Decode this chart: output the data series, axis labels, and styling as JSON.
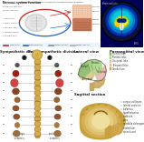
{
  "fig_bg": "#ffffff",
  "panels": {
    "top_left": {
      "bg_color": "#cce8f4",
      "brain_gray": "#d8d8d8",
      "brain_dark": "#b0b0b0",
      "red_curve": "#cc2222",
      "blue_curve": "#2266cc",
      "skin_box": "#f5c8a8",
      "muscle_box": "#c8785a",
      "text_dark": "#222222",
      "label_color": "#444444"
    },
    "top_right": {
      "bg_color": "#000080",
      "outer_color": "#004488",
      "cyan_color": "#00ccdd",
      "yellow_color": "#eedd00",
      "white_color": "#cceeee"
    },
    "bottom_left": {
      "bg_color": "#ffffff",
      "spine_tan": "#c8a040",
      "spine_dark": "#a07820",
      "brain_tan": "#c8a040",
      "organ_eye": "#555555",
      "organ_heart": "#881111",
      "organ_lung": "#cc4444",
      "organ_liver": "#7a4020",
      "organ_stomach": "#8a6030",
      "organ_kidney": "#885030",
      "organ_bladder": "#998855",
      "organ_intestine": "#9a7040",
      "line_sym": "#cc9900",
      "line_para": "#4488cc",
      "text_color": "#222222"
    },
    "bottom_right": {
      "bg_color": "#ffffff",
      "brain_top_green": "#90c878",
      "brain_top_pink": "#e8b8b0",
      "brain_top_tan": "#d4b870",
      "brain_bot_outer": "#c8a040",
      "brain_bot_mid": "#d4b050",
      "brain_bot_inner": "#e8cc80",
      "brain_bot_center": "#f0e0a0",
      "text_color": "#222222"
    }
  }
}
